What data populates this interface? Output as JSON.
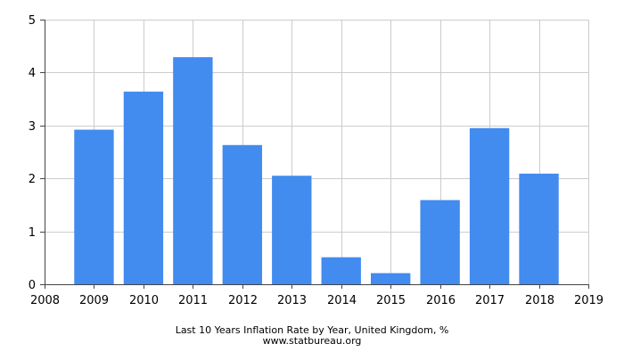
{
  "chart_data": {
    "type": "bar",
    "title": "Last 10 Years Inflation Rate by Year, United Kingdom, %",
    "source": "www.statbureau.org",
    "categories": [
      "2009",
      "2010",
      "2011",
      "2012",
      "2013",
      "2014",
      "2015",
      "2016",
      "2017",
      "2018"
    ],
    "values": [
      2.92,
      3.64,
      4.29,
      2.63,
      2.05,
      0.51,
      0.21,
      1.59,
      2.95,
      2.09
    ],
    "x_ticks": [
      "2008",
      "2009",
      "2010",
      "2011",
      "2012",
      "2013",
      "2014",
      "2015",
      "2016",
      "2017",
      "2018",
      "2019"
    ],
    "y_ticks": [
      "0",
      "1",
      "2",
      "3",
      "4",
      "5"
    ],
    "ylim": [
      0,
      5
    ],
    "xlim": [
      2008,
      2019
    ],
    "grid": true,
    "legend": "none",
    "bar_color": "#428bef",
    "grid_color": "#cccccc"
  }
}
